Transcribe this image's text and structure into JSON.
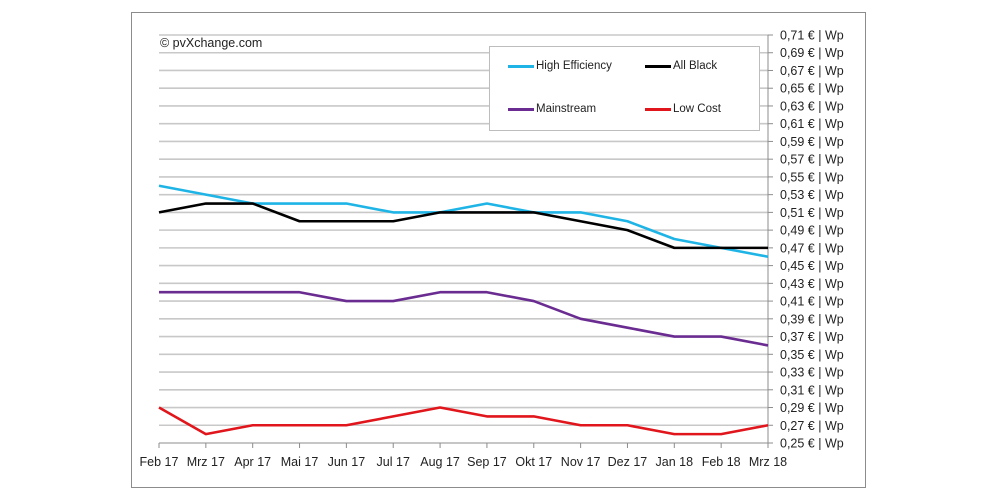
{
  "copyright": "© pvXchange.com",
  "chart_data": {
    "type": "line",
    "title": "",
    "xlabel": "",
    "ylabel": "",
    "categories": [
      "Feb 17",
      "Mrz 17",
      "Apr 17",
      "Mai 17",
      "Jun 17",
      "Jul 17",
      "Aug 17",
      "Sep 17",
      "Okt 17",
      "Nov 17",
      "Dez 17",
      "Jan 18",
      "Feb 18",
      "Mrz 18"
    ],
    "ylim": [
      0.25,
      0.71
    ],
    "ytick_step": 0.02,
    "ytick_labels": [
      "0,71 € | Wp",
      "0,69 € | Wp",
      "0,67 € | Wp",
      "0,65 € | Wp",
      "0,63 € | Wp",
      "0,61 € | Wp",
      "0,59 € | Wp",
      "0,57 € | Wp",
      "0,55 € | Wp",
      "0,53 € | Wp",
      "0,51 € | Wp",
      "0,49 € | Wp",
      "0,47 € | Wp",
      "0,45 € | Wp",
      "0,43 € | Wp",
      "0,41 € | Wp",
      "0,39 € | Wp",
      "0,37 € | Wp",
      "0,35 € | Wp",
      "0,33 € | Wp",
      "0,31 € | Wp",
      "0,29 € | Wp",
      "0,27 € | Wp",
      "0,25 € | Wp"
    ],
    "grid": true,
    "legend_position": "top-right",
    "series": [
      {
        "name": "High Efficiency",
        "color": "#1fb4e6",
        "values": [
          0.54,
          0.53,
          0.52,
          0.52,
          0.52,
          0.51,
          0.51,
          0.52,
          0.51,
          0.51,
          0.5,
          0.48,
          0.47,
          0.46
        ]
      },
      {
        "name": "All Black",
        "color": "#000000",
        "values": [
          0.51,
          0.52,
          0.52,
          0.5,
          0.5,
          0.5,
          0.51,
          0.51,
          0.51,
          0.5,
          0.49,
          0.47,
          0.47,
          0.47
        ]
      },
      {
        "name": "Mainstream",
        "color": "#6a2c91",
        "values": [
          0.42,
          0.42,
          0.42,
          0.42,
          0.41,
          0.41,
          0.42,
          0.42,
          0.41,
          0.39,
          0.38,
          0.37,
          0.37,
          0.36
        ]
      },
      {
        "name": "Low Cost",
        "color": "#e0161c",
        "values": [
          0.29,
          0.26,
          0.27,
          0.27,
          0.27,
          0.28,
          0.29,
          0.28,
          0.28,
          0.27,
          0.27,
          0.26,
          0.26,
          0.27
        ]
      }
    ]
  }
}
